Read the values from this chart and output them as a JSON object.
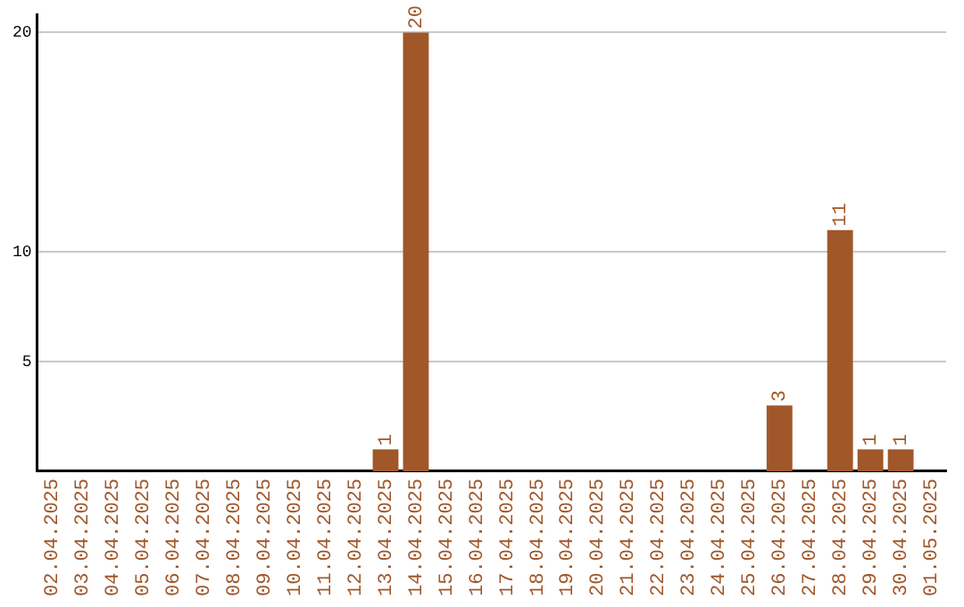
{
  "chart_data": {
    "type": "bar",
    "categories": [
      "02.04.2025",
      "03.04.2025",
      "04.04.2025",
      "05.04.2025",
      "06.04.2025",
      "07.04.2025",
      "08.04.2025",
      "09.04.2025",
      "10.04.2025",
      "11.04.2025",
      "12.04.2025",
      "13.04.2025",
      "14.04.2025",
      "15.04.2025",
      "16.04.2025",
      "17.04.2025",
      "18.04.2025",
      "19.04.2025",
      "20.04.2025",
      "21.04.2025",
      "22.04.2025",
      "23.04.2025",
      "24.04.2025",
      "25.04.2025",
      "26.04.2025",
      "27.04.2025",
      "28.04.2025",
      "29.04.2025",
      "30.04.2025",
      "01.05.2025"
    ],
    "values": [
      0,
      0,
      0,
      0,
      0,
      0,
      0,
      0,
      0,
      0,
      0,
      1,
      20,
      0,
      0,
      0,
      0,
      0,
      0,
      0,
      0,
      0,
      0,
      0,
      3,
      0,
      11,
      1,
      1,
      0
    ],
    "value_labels": [
      null,
      null,
      null,
      null,
      null,
      null,
      null,
      null,
      null,
      null,
      null,
      "1",
      "20",
      null,
      null,
      null,
      null,
      null,
      null,
      null,
      null,
      null,
      null,
      null,
      "3",
      null,
      "11",
      "1",
      "1",
      null
    ],
    "color": "#a0572a",
    "ylim": [
      0,
      20.8
    ],
    "yticks": [
      5,
      10,
      20
    ],
    "grid": "y",
    "legend": false
  }
}
